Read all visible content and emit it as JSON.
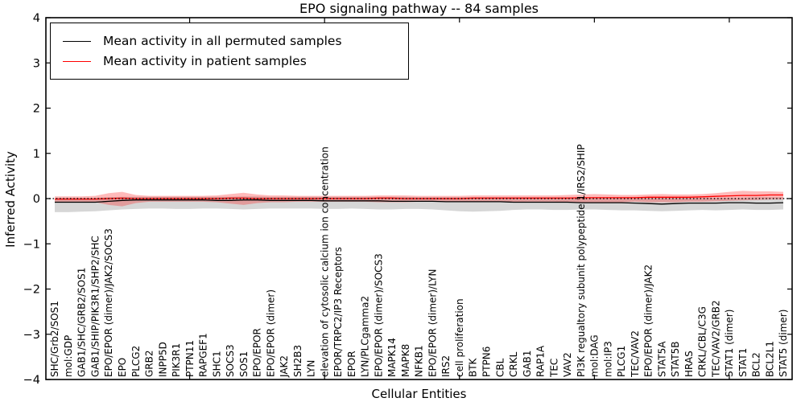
{
  "chart_data": {
    "type": "line",
    "title": "EPO signaling pathway -- 84 samples",
    "xlabel": "Cellular Entities",
    "ylabel": "Inferred Activity",
    "ylim": [
      -4,
      4
    ],
    "yticks": [
      4,
      3,
      2,
      1,
      0,
      -1,
      -2,
      -3,
      -4
    ],
    "xtick_positions": [
      10,
      20,
      30,
      40,
      50
    ],
    "grid": false,
    "legend_position": "upper left",
    "zero_line": {
      "value": 0,
      "style": "dotted",
      "color": "#000000"
    },
    "categories": [
      "SHC/Grb2/SOS1",
      "mol:GDP",
      "GAB1/SHC/GRB2/SOS1",
      "GAB1/SHIP/PIK3R1/SHP2/SHC",
      "EPO/EPOR (dimer)/JAK2/SOCS3",
      "EPO",
      "PLCG2",
      "GRB2",
      "INPP5D",
      "PIK3R1",
      "PTPN11",
      "RAPGEF1",
      "SHC1",
      "SOCS3",
      "SOS1",
      "EPO/EPOR",
      "EPO/EPOR (dimer)",
      "JAK2",
      "SH2B3",
      "LYN",
      "elevation of cytosolic calcium ion concentration",
      "EPOR/TRPC2/IP3 Receptors",
      "EPOR",
      "LYN/PLCgamma2",
      "EPO/EPOR (dimer)/SOCS3",
      "MAPK14",
      "MAPK8",
      "NFKB1",
      "EPO/EPOR (dimer)/LYN",
      "IRS2",
      "cell proliferation",
      "BTK",
      "PTPN6",
      "CBL",
      "CRKL",
      "GAB1",
      "RAP1A",
      "TEC",
      "VAV2",
      "PI3K regualtory subunit polypeptide 1/IRS2/SHIP",
      "mol:DAG",
      "mol:IP3",
      "PLCG1",
      "TEC/VAV2",
      "EPO/EPOR (dimer)/JAK2",
      "STAT5A",
      "STAT5B",
      "HRAS",
      "CRKL/CBL/C3G",
      "TEC/VAV2/GRB2",
      "STAT1 (dimer)",
      "STAT1",
      "BCL2",
      "BCL2L1",
      "STAT5 (dimer)"
    ],
    "series": [
      {
        "name": "Mean activity in all permuted samples",
        "color": "#000000",
        "band_color": "rgba(0,0,0,0.16)",
        "values": [
          -0.08,
          -0.08,
          -0.08,
          -0.08,
          -0.06,
          -0.04,
          -0.03,
          -0.03,
          -0.03,
          -0.03,
          -0.03,
          -0.03,
          -0.04,
          -0.04,
          -0.03,
          -0.03,
          -0.04,
          -0.04,
          -0.04,
          -0.04,
          -0.05,
          -0.05,
          -0.05,
          -0.05,
          -0.05,
          -0.06,
          -0.06,
          -0.06,
          -0.06,
          -0.07,
          -0.07,
          -0.07,
          -0.07,
          -0.07,
          -0.08,
          -0.08,
          -0.08,
          -0.08,
          -0.08,
          -0.09,
          -0.09,
          -0.09,
          -0.09,
          -0.1,
          -0.11,
          -0.12,
          -0.11,
          -0.1,
          -0.1,
          -0.1,
          -0.09,
          -0.09,
          -0.1,
          -0.1,
          -0.09
        ],
        "band_upper": [
          0.02,
          0.02,
          0.02,
          0.02,
          0.03,
          0.04,
          0.04,
          0.04,
          0.04,
          0.04,
          0.04,
          0.04,
          0.04,
          0.04,
          0.05,
          0.05,
          0.04,
          0.04,
          0.04,
          0.04,
          0.04,
          0.04,
          0.04,
          0.04,
          0.04,
          0.04,
          0.04,
          0.03,
          0.03,
          0.03,
          0.03,
          0.03,
          0.03,
          0.03,
          0.03,
          0.03,
          0.03,
          0.03,
          0.03,
          0.02,
          0.02,
          0.02,
          0.02,
          0.02,
          0.02,
          0.02,
          0.02,
          0.02,
          0.02,
          0.02,
          0.02,
          0.02,
          0.03,
          0.03,
          0.03
        ],
        "band_lower": [
          -0.3,
          -0.3,
          -0.29,
          -0.28,
          -0.26,
          -0.24,
          -0.23,
          -0.22,
          -0.22,
          -0.23,
          -0.23,
          -0.22,
          -0.22,
          -0.23,
          -0.24,
          -0.23,
          -0.22,
          -0.22,
          -0.22,
          -0.22,
          -0.23,
          -0.23,
          -0.22,
          -0.23,
          -0.24,
          -0.24,
          -0.23,
          -0.23,
          -0.24,
          -0.26,
          -0.28,
          -0.29,
          -0.28,
          -0.27,
          -0.25,
          -0.24,
          -0.24,
          -0.25,
          -0.25,
          -0.24,
          -0.24,
          -0.25,
          -0.26,
          -0.26,
          -0.27,
          -0.28,
          -0.27,
          -0.26,
          -0.25,
          -0.26,
          -0.25,
          -0.24,
          -0.25,
          -0.25,
          -0.24
        ]
      },
      {
        "name": "Mean activity in patient samples",
        "color": "#ff0000",
        "band_color": "rgba(255,0,0,0.27)",
        "values": [
          -0.01,
          -0.01,
          -0.01,
          -0.01,
          0.0,
          0.01,
          0.0,
          0.0,
          0.0,
          0.0,
          0.0,
          0.0,
          0.0,
          0.01,
          0.01,
          0.0,
          0.0,
          0.0,
          0.0,
          0.0,
          0.0,
          0.0,
          0.0,
          0.0,
          0.01,
          0.01,
          0.0,
          0.0,
          0.0,
          0.0,
          0.0,
          0.01,
          0.01,
          0.01,
          0.01,
          0.01,
          0.01,
          0.01,
          0.01,
          0.02,
          0.02,
          0.02,
          0.02,
          0.02,
          0.03,
          0.03,
          0.03,
          0.03,
          0.04,
          0.05,
          0.06,
          0.07,
          0.07,
          0.08,
          0.08
        ],
        "band_upper": [
          0.05,
          0.05,
          0.05,
          0.06,
          0.12,
          0.15,
          0.08,
          0.06,
          0.06,
          0.06,
          0.06,
          0.06,
          0.07,
          0.1,
          0.13,
          0.09,
          0.07,
          0.07,
          0.06,
          0.06,
          0.06,
          0.06,
          0.06,
          0.06,
          0.07,
          0.07,
          0.07,
          0.06,
          0.06,
          0.06,
          0.06,
          0.07,
          0.07,
          0.07,
          0.07,
          0.07,
          0.07,
          0.07,
          0.08,
          0.09,
          0.1,
          0.09,
          0.08,
          0.08,
          0.09,
          0.1,
          0.09,
          0.09,
          0.1,
          0.12,
          0.15,
          0.17,
          0.16,
          0.16,
          0.15
        ],
        "band_lower": [
          -0.07,
          -0.07,
          -0.07,
          -0.08,
          -0.14,
          -0.17,
          -0.1,
          -0.07,
          -0.07,
          -0.07,
          -0.07,
          -0.07,
          -0.08,
          -0.11,
          -0.14,
          -0.1,
          -0.08,
          -0.08,
          -0.07,
          -0.07,
          -0.07,
          -0.07,
          -0.07,
          -0.07,
          -0.08,
          -0.08,
          -0.08,
          -0.07,
          -0.07,
          -0.07,
          -0.07,
          -0.08,
          -0.08,
          -0.08,
          -0.08,
          -0.07,
          -0.07,
          -0.07,
          -0.08,
          -0.08,
          -0.09,
          -0.08,
          -0.08,
          -0.07,
          -0.08,
          -0.08,
          -0.08,
          -0.07,
          -0.07,
          -0.06,
          -0.05,
          -0.04,
          -0.03,
          -0.02,
          -0.02
        ]
      }
    ]
  }
}
